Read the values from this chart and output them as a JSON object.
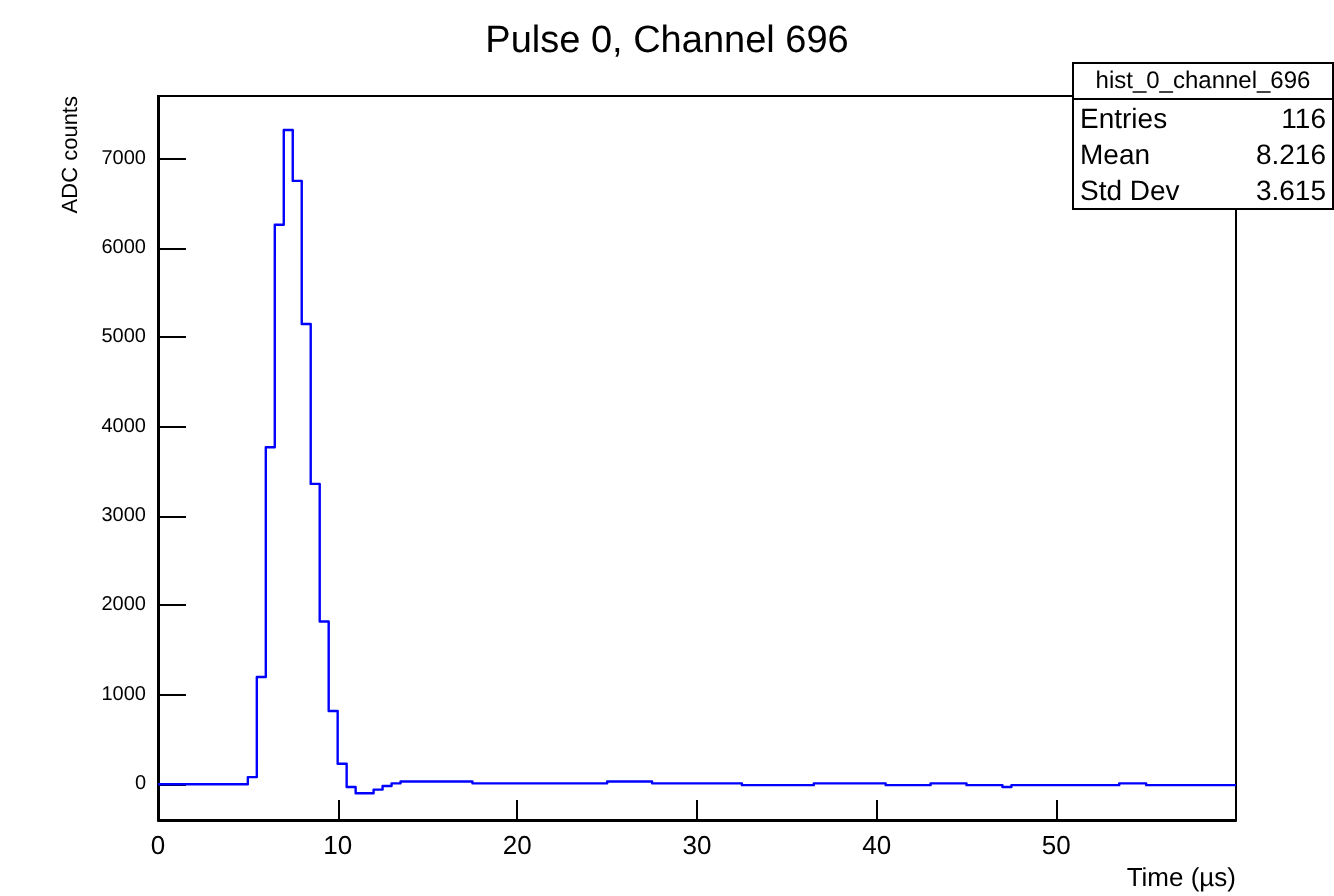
{
  "chart_data": {
    "type": "histogram",
    "title": "Pulse 0, Channel 696",
    "xlabel": "Time (µs)",
    "ylabel": "ADC counts",
    "bins": [
      0,
      0.5,
      1,
      1.5,
      2,
      2.5,
      3,
      3.5,
      4,
      4.5,
      5,
      5.5,
      6,
      6.5,
      7,
      7.5,
      8,
      8.5,
      9,
      9.5,
      10,
      10.5,
      11,
      11.5,
      12,
      12.5,
      13,
      13.5,
      14,
      14.5,
      15,
      15.5,
      16,
      16.5,
      17,
      17.5,
      18,
      18.5,
      19,
      19.5,
      20,
      20.5,
      21,
      21.5,
      22,
      22.5,
      23,
      23.5,
      24,
      24.5,
      25,
      25.5,
      26,
      26.5,
      27,
      27.5,
      28,
      28.5,
      29,
      29.5,
      30,
      30.5,
      31,
      31.5,
      32,
      32.5,
      33,
      33.5,
      34,
      34.5,
      35,
      35.5,
      36,
      36.5,
      37,
      37.5,
      38,
      38.5,
      39,
      39.5,
      40,
      40.5,
      41,
      41.5,
      42,
      42.5,
      43,
      43.5,
      44,
      44.5,
      45,
      45.5,
      46,
      46.5,
      47,
      47.5,
      48,
      48.5,
      49,
      49.5,
      50,
      50.5,
      51,
      51.5,
      52,
      52.5,
      53,
      53.5,
      54,
      54.5,
      55,
      55.5,
      56,
      56.5,
      57,
      57.5,
      58,
      58.5,
      59,
      59.5,
      60
    ],
    "values": [
      0,
      0,
      0,
      0,
      0,
      0,
      0,
      0,
      0,
      0,
      80,
      1200,
      3770,
      6260,
      7320,
      6750,
      5150,
      3360,
      1820,
      820,
      230,
      -30,
      -100,
      -100,
      -60,
      -20,
      10,
      30,
      30,
      30,
      30,
      30,
      30,
      30,
      30,
      10,
      10,
      10,
      10,
      10,
      10,
      10,
      10,
      10,
      10,
      10,
      10,
      10,
      10,
      10,
      30,
      30,
      30,
      30,
      30,
      10,
      10,
      10,
      10,
      10,
      10,
      10,
      10,
      10,
      10,
      -10,
      -10,
      -10,
      -10,
      -10,
      -10,
      -10,
      -10,
      10,
      10,
      10,
      10,
      10,
      10,
      10,
      10,
      -10,
      -10,
      -10,
      -10,
      -10,
      10,
      10,
      10,
      10,
      -10,
      -10,
      -10,
      -10,
      -30,
      -10,
      -10,
      -10,
      -10,
      -10,
      -10,
      -10,
      -10,
      -10,
      -10,
      -10,
      -10,
      10,
      10,
      10,
      -10,
      -10,
      -10,
      -10,
      -10,
      -10,
      -10,
      -10,
      -10,
      -10
    ],
    "color": "#0000ff",
    "xlim": [
      0,
      60
    ],
    "xticks": [
      0,
      10,
      20,
      30,
      40,
      50
    ],
    "ylim": [
      -400,
      7700
    ],
    "yticks": [
      0,
      1000,
      2000,
      3000,
      4000,
      5000,
      6000,
      7000
    ],
    "grid": false,
    "annotations": [
      "hist_0_channel_696",
      "Entries 116",
      "Mean 8.216",
      "Std Dev 3.615"
    ]
  }
}
